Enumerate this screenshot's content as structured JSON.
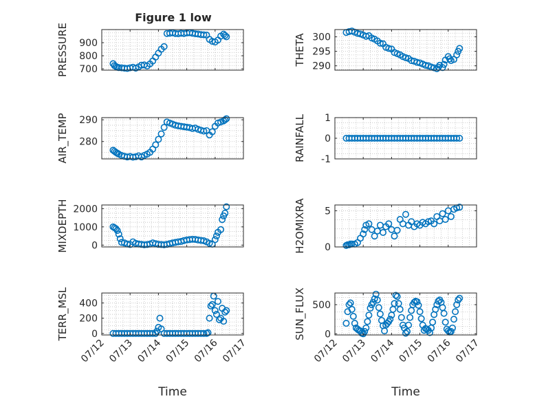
{
  "figure_title": "Figure 1 low",
  "colors": {
    "series": "#0072BD",
    "axes": "#262626",
    "grid": "#bdbdbd"
  },
  "chart_data": [
    {
      "type": "scatter",
      "ylabel": "PRESSURE",
      "ylim": [
        690,
        1000
      ],
      "yticks": [
        700,
        800,
        900
      ],
      "xlim": [
        0,
        5
      ],
      "xticks": [
        0,
        1,
        2,
        3,
        4,
        5
      ],
      "xticklabels": [],
      "xlabel": "",
      "grid": true,
      "x": [
        0.4,
        0.45,
        0.5,
        0.55,
        0.6,
        0.7,
        0.8,
        0.9,
        1.0,
        1.1,
        1.2,
        1.3,
        1.4,
        1.5,
        1.6,
        1.7,
        1.8,
        1.9,
        2.0,
        2.1,
        2.2,
        2.3,
        2.4,
        2.5,
        2.6,
        2.7,
        2.8,
        2.9,
        3.0,
        3.1,
        3.2,
        3.3,
        3.4,
        3.5,
        3.6,
        3.7,
        3.8,
        3.9,
        4.0,
        4.1,
        4.2,
        4.3,
        4.35,
        4.4
      ],
      "y": [
        740,
        725,
        718,
        712,
        710,
        708,
        705,
        703,
        708,
        712,
        705,
        715,
        728,
        730,
        722,
        738,
        760,
        790,
        820,
        850,
        870,
        970,
        972,
        975,
        970,
        968,
        972,
        970,
        974,
        976,
        972,
        968,
        966,
        962,
        960,
        958,
        925,
        910,
        905,
        920,
        950,
        965,
        955,
        945
      ]
    },
    {
      "type": "scatter",
      "ylabel": "THETA",
      "ylim": [
        288.5,
        302.5
      ],
      "yticks": [
        290,
        295,
        300
      ],
      "xlim": [
        0,
        5
      ],
      "xticks": [
        0,
        1,
        2,
        3,
        4,
        5
      ],
      "xticklabels": [],
      "xlabel": "",
      "grid": true,
      "x": [
        0.4,
        0.5,
        0.6,
        0.7,
        0.8,
        0.9,
        1.0,
        1.1,
        1.2,
        1.3,
        1.4,
        1.5,
        1.6,
        1.7,
        1.8,
        1.9,
        2.0,
        2.1,
        2.2,
        2.3,
        2.4,
        2.5,
        2.6,
        2.7,
        2.8,
        2.9,
        3.0,
        3.1,
        3.2,
        3.3,
        3.4,
        3.5,
        3.6,
        3.65,
        3.7,
        3.8,
        3.85,
        3.9,
        4.0,
        4.05,
        4.1,
        4.2,
        4.3,
        4.35,
        4.4
      ],
      "y": [
        301.5,
        301.8,
        302.0,
        301.6,
        301.2,
        301.0,
        300.6,
        300.2,
        300.4,
        299.6,
        299.2,
        298.6,
        297.8,
        297.6,
        296.4,
        296.0,
        295.8,
        294.6,
        294.2,
        293.8,
        293.2,
        292.8,
        292.5,
        291.8,
        291.6,
        291.2,
        291.0,
        290.6,
        290.2,
        290.0,
        289.6,
        289.3,
        289.0,
        289.5,
        290.2,
        289.4,
        290.5,
        292.0,
        293.2,
        292.4,
        291.8,
        292.2,
        293.8,
        295.0,
        296.0
      ]
    },
    {
      "type": "scatter",
      "ylabel": "AIR_TEMP",
      "ylim": [
        272,
        291
      ],
      "yticks": [
        280,
        290
      ],
      "xlim": [
        0,
        5
      ],
      "xticks": [
        0,
        1,
        2,
        3,
        4,
        5
      ],
      "xticklabels": [],
      "xlabel": "",
      "grid": true,
      "x": [
        0.4,
        0.45,
        0.5,
        0.55,
        0.6,
        0.7,
        0.8,
        0.9,
        1.0,
        1.1,
        1.2,
        1.3,
        1.4,
        1.5,
        1.6,
        1.7,
        1.8,
        1.9,
        2.0,
        2.1,
        2.2,
        2.3,
        2.4,
        2.5,
        2.6,
        2.7,
        2.8,
        2.9,
        3.0,
        3.1,
        3.2,
        3.3,
        3.4,
        3.5,
        3.6,
        3.7,
        3.8,
        3.9,
        4.0,
        4.1,
        4.2,
        4.3,
        4.35,
        4.4
      ],
      "y": [
        276,
        275.5,
        275,
        274.6,
        274.2,
        273.6,
        273.2,
        272.9,
        273.1,
        272.8,
        273.0,
        273.4,
        272.9,
        273.6,
        274.2,
        275.0,
        276.5,
        278.5,
        281.0,
        283.5,
        286.5,
        289.0,
        288.5,
        288.0,
        287.5,
        287.2,
        287.0,
        286.8,
        286.6,
        286.4,
        286.0,
        286.2,
        285.6,
        285.2,
        284.8,
        285.0,
        283.0,
        284.5,
        287.0,
        288.5,
        289.0,
        289.5,
        290.0,
        290.5
      ]
    },
    {
      "type": "scatter",
      "ylabel": "RAINFALL",
      "ylim": [
        -1,
        1
      ],
      "yticks": [
        -1,
        0,
        1
      ],
      "xlim": [
        0,
        5
      ],
      "xticks": [
        0,
        1,
        2,
        3,
        4,
        5
      ],
      "xticklabels": [],
      "xlabel": "",
      "grid": true,
      "x": [
        0.4,
        0.5,
        0.6,
        0.7,
        0.8,
        0.9,
        1.0,
        1.1,
        1.2,
        1.3,
        1.4,
        1.5,
        1.6,
        1.7,
        1.8,
        1.9,
        2.0,
        2.1,
        2.2,
        2.3,
        2.4,
        2.5,
        2.6,
        2.7,
        2.8,
        2.9,
        3.0,
        3.1,
        3.2,
        3.3,
        3.4,
        3.5,
        3.6,
        3.7,
        3.8,
        3.9,
        4.0,
        4.1,
        4.2,
        4.3,
        4.4
      ],
      "y": [
        0,
        0,
        0,
        0,
        0,
        0,
        0,
        0,
        0,
        0,
        0,
        0,
        0,
        0,
        0,
        0,
        0,
        0,
        0,
        0,
        0,
        0,
        0,
        0,
        0,
        0,
        0,
        0,
        0,
        0,
        0,
        0,
        0,
        0,
        0,
        0,
        0,
        0,
        0,
        0,
        0
      ]
    },
    {
      "type": "scatter",
      "ylabel": "MIXDEPTH",
      "ylim": [
        -100,
        2200
      ],
      "yticks": [
        0,
        1000,
        2000
      ],
      "xlim": [
        0,
        5
      ],
      "xticks": [
        0,
        1,
        2,
        3,
        4,
        5
      ],
      "xticklabels": [],
      "xlabel": "",
      "grid": true,
      "x": [
        0.4,
        0.45,
        0.5,
        0.55,
        0.6,
        0.65,
        0.7,
        0.8,
        0.9,
        1.0,
        1.1,
        1.2,
        1.3,
        1.4,
        1.5,
        1.6,
        1.7,
        1.8,
        1.9,
        2.0,
        2.1,
        2.2,
        2.3,
        2.4,
        2.5,
        2.6,
        2.7,
        2.8,
        2.9,
        3.0,
        3.1,
        3.2,
        3.3,
        3.4,
        3.5,
        3.6,
        3.7,
        3.8,
        3.9,
        4.0,
        4.05,
        4.1,
        4.2,
        4.25,
        4.3,
        4.35,
        4.4
      ],
      "y": [
        1000,
        950,
        900,
        800,
        600,
        350,
        150,
        120,
        60,
        30,
        180,
        100,
        60,
        40,
        20,
        30,
        60,
        120,
        80,
        40,
        30,
        20,
        40,
        80,
        120,
        150,
        180,
        200,
        250,
        280,
        300,
        320,
        310,
        280,
        260,
        240,
        180,
        100,
        50,
        300,
        500,
        700,
        850,
        1400,
        1600,
        1750,
        2100
      ]
    },
    {
      "type": "scatter",
      "ylabel": "H2OMIXRA",
      "ylim": [
        0,
        5.8
      ],
      "yticks": [
        0,
        5
      ],
      "xlim": [
        0,
        5
      ],
      "xticks": [
        0,
        1,
        2,
        3,
        4,
        5
      ],
      "xticklabels": [],
      "xlabel": "",
      "grid": true,
      "x": [
        0.4,
        0.45,
        0.5,
        0.55,
        0.6,
        0.7,
        0.8,
        0.9,
        1.0,
        1.05,
        1.1,
        1.2,
        1.3,
        1.4,
        1.5,
        1.6,
        1.7,
        1.8,
        1.9,
        2.0,
        2.1,
        2.2,
        2.3,
        2.4,
        2.5,
        2.6,
        2.7,
        2.8,
        2.9,
        3.0,
        3.1,
        3.2,
        3.3,
        3.4,
        3.5,
        3.6,
        3.7,
        3.8,
        3.9,
        4.0,
        4.1,
        4.2,
        4.3,
        4.4
      ],
      "y": [
        0.2,
        0.3,
        0.3,
        0.4,
        0.4,
        0.4,
        0.6,
        1.2,
        1.8,
        2.4,
        3.0,
        3.2,
        2.4,
        1.5,
        2.2,
        3.0,
        2.0,
        2.8,
        3.2,
        2.4,
        1.5,
        2.3,
        3.8,
        3.2,
        4.5,
        3.0,
        3.5,
        2.8,
        3.2,
        3.0,
        3.4,
        3.2,
        3.5,
        3.6,
        3.2,
        4.2,
        3.6,
        4.6,
        3.8,
        5.0,
        4.2,
        5.2,
        5.4,
        5.5
      ]
    },
    {
      "type": "scatter",
      "ylabel": "TERR_MSL",
      "ylim": [
        -20,
        530
      ],
      "yticks": [
        0,
        200,
        400
      ],
      "xlim": [
        0,
        5
      ],
      "xticks": [
        0,
        1,
        2,
        3,
        4,
        5
      ],
      "xticklabels": [
        "07/12",
        "07/13",
        "07/14",
        "07/15",
        "07/16",
        "07/17"
      ],
      "xlabel": "Time",
      "grid": true,
      "x": [
        0.4,
        0.5,
        0.6,
        0.7,
        0.8,
        0.9,
        1.0,
        1.1,
        1.2,
        1.3,
        1.4,
        1.5,
        1.6,
        1.7,
        1.8,
        1.9,
        1.95,
        2.0,
        2.05,
        2.1,
        2.2,
        2.3,
        2.4,
        2.5,
        2.6,
        2.7,
        2.8,
        2.9,
        3.0,
        3.1,
        3.2,
        3.3,
        3.4,
        3.5,
        3.6,
        3.7,
        3.75,
        3.8,
        3.85,
        3.9,
        3.95,
        4.0,
        4.05,
        4.1,
        4.15,
        4.2,
        4.25,
        4.3,
        4.35,
        4.4
      ],
      "y": [
        0,
        0,
        0,
        0,
        0,
        0,
        0,
        0,
        0,
        0,
        0,
        0,
        0,
        0,
        0,
        0,
        30,
        80,
        200,
        60,
        0,
        0,
        0,
        0,
        0,
        0,
        0,
        0,
        0,
        0,
        0,
        0,
        0,
        0,
        0,
        0,
        10,
        200,
        360,
        380,
        490,
        300,
        250,
        420,
        180,
        200,
        330,
        160,
        280,
        300
      ]
    },
    {
      "type": "scatter",
      "ylabel": "SUN_FLUX",
      "ylim": [
        -20,
        700
      ],
      "yticks": [
        0,
        500
      ],
      "xlim": [
        0,
        5
      ],
      "xticks": [
        0,
        1,
        2,
        3,
        4,
        5
      ],
      "xticklabels": [
        "07/12",
        "07/13",
        "07/14",
        "07/15",
        "07/16",
        "07/17"
      ],
      "xlabel": "Time",
      "grid": true,
      "x": [
        0.4,
        0.45,
        0.5,
        0.55,
        0.6,
        0.65,
        0.7,
        0.75,
        0.8,
        0.85,
        0.9,
        0.95,
        1.0,
        1.05,
        1.1,
        1.15,
        1.2,
        1.25,
        1.3,
        1.35,
        1.4,
        1.45,
        1.5,
        1.55,
        1.6,
        1.65,
        1.7,
        1.75,
        1.8,
        1.85,
        1.9,
        1.95,
        2.0,
        2.05,
        2.1,
        2.15,
        2.2,
        2.25,
        2.3,
        2.35,
        2.4,
        2.45,
        2.5,
        2.55,
        2.6,
        2.65,
        2.7,
        2.75,
        2.8,
        2.85,
        2.9,
        2.95,
        3.0,
        3.05,
        3.1,
        3.15,
        3.2,
        3.25,
        3.3,
        3.35,
        3.4,
        3.45,
        3.5,
        3.55,
        3.6,
        3.65,
        3.7,
        3.75,
        3.8,
        3.85,
        3.9,
        3.95,
        4.0,
        4.05,
        4.1,
        4.15,
        4.2,
        4.25,
        4.3,
        4.35,
        4.4
      ],
      "y": [
        180,
        380,
        500,
        530,
        420,
        300,
        180,
        100,
        80,
        60,
        50,
        10,
        0,
        40,
        100,
        210,
        320,
        440,
        500,
        540,
        600,
        680,
        580,
        450,
        340,
        230,
        140,
        50,
        150,
        180,
        210,
        250,
        320,
        420,
        520,
        660,
        640,
        520,
        420,
        280,
        150,
        100,
        10,
        40,
        150,
        280,
        400,
        500,
        540,
        560,
        550,
        490,
        380,
        260,
        150,
        60,
        90,
        80,
        60,
        20,
        100,
        200,
        330,
        420,
        500,
        560,
        580,
        540,
        450,
        350,
        200,
        80,
        50,
        30,
        40,
        100,
        250,
        380,
        500,
        580,
        610
      ]
    }
  ]
}
